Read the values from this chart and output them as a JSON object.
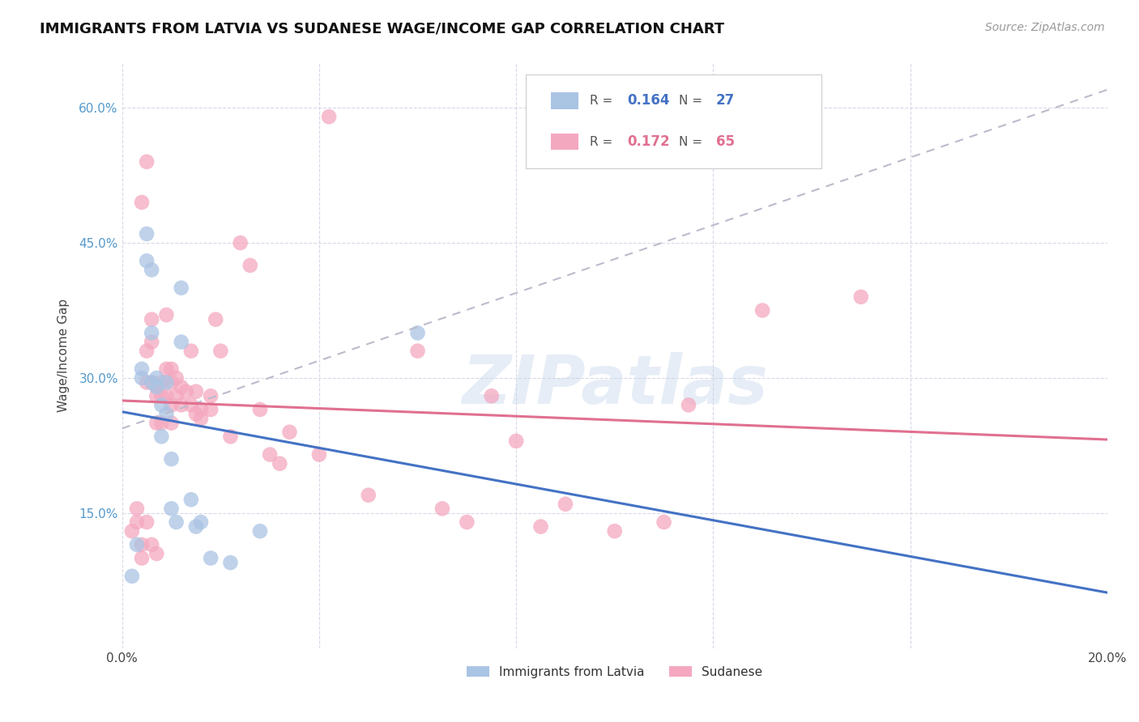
{
  "title": "IMMIGRANTS FROM LATVIA VS SUDANESE WAGE/INCOME GAP CORRELATION CHART",
  "source": "Source: ZipAtlas.com",
  "ylabel": "Wage/Income Gap",
  "xlim": [
    0.0,
    0.2
  ],
  "ylim": [
    0.0,
    0.65
  ],
  "x_ticks": [
    0.0,
    0.04,
    0.08,
    0.12,
    0.16,
    0.2
  ],
  "x_tick_labels": [
    "0.0%",
    "",
    "",
    "",
    "",
    "20.0%"
  ],
  "y_ticks": [
    0.0,
    0.15,
    0.3,
    0.45,
    0.6
  ],
  "y_tick_labels": [
    "",
    "15.0%",
    "30.0%",
    "45.0%",
    "60.0%"
  ],
  "background_color": "#ffffff",
  "grid_color": "#d8d8e8",
  "watermark": "ZIPatlas",
  "blue_color": "#aac4e4",
  "pink_color": "#f4a8c0",
  "line_blue": "#4472c4",
  "line_pink": "#e07090",
  "line_dashed_color": "#bbbbcc",
  "latvia_x": [
    0.002,
    0.003,
    0.004,
    0.004,
    0.005,
    0.005,
    0.006,
    0.006,
    0.006,
    0.007,
    0.007,
    0.008,
    0.008,
    0.009,
    0.009,
    0.01,
    0.01,
    0.011,
    0.012,
    0.012,
    0.014,
    0.015,
    0.016,
    0.018,
    0.022,
    0.028,
    0.06
  ],
  "latvia_y": [
    0.08,
    0.115,
    0.31,
    0.3,
    0.46,
    0.43,
    0.42,
    0.35,
    0.295,
    0.3,
    0.29,
    0.27,
    0.235,
    0.295,
    0.26,
    0.21,
    0.155,
    0.14,
    0.4,
    0.34,
    0.165,
    0.135,
    0.14,
    0.1,
    0.095,
    0.13,
    0.35
  ],
  "sudanese_x": [
    0.002,
    0.003,
    0.003,
    0.004,
    0.004,
    0.004,
    0.005,
    0.005,
    0.005,
    0.005,
    0.006,
    0.006,
    0.006,
    0.006,
    0.007,
    0.007,
    0.007,
    0.007,
    0.008,
    0.008,
    0.008,
    0.009,
    0.009,
    0.009,
    0.01,
    0.01,
    0.01,
    0.01,
    0.011,
    0.011,
    0.012,
    0.012,
    0.013,
    0.014,
    0.014,
    0.015,
    0.015,
    0.016,
    0.016,
    0.018,
    0.018,
    0.019,
    0.02,
    0.022,
    0.024,
    0.026,
    0.028,
    0.03,
    0.032,
    0.034,
    0.04,
    0.042,
    0.05,
    0.06,
    0.065,
    0.07,
    0.075,
    0.08,
    0.085,
    0.09,
    0.1,
    0.11,
    0.115,
    0.13,
    0.15
  ],
  "sudanese_y": [
    0.13,
    0.155,
    0.14,
    0.495,
    0.115,
    0.1,
    0.54,
    0.33,
    0.295,
    0.14,
    0.365,
    0.34,
    0.295,
    0.115,
    0.29,
    0.28,
    0.25,
    0.105,
    0.295,
    0.28,
    0.25,
    0.37,
    0.31,
    0.28,
    0.31,
    0.295,
    0.27,
    0.25,
    0.3,
    0.28,
    0.29,
    0.27,
    0.285,
    0.33,
    0.27,
    0.285,
    0.26,
    0.265,
    0.255,
    0.28,
    0.265,
    0.365,
    0.33,
    0.235,
    0.45,
    0.425,
    0.265,
    0.215,
    0.205,
    0.24,
    0.215,
    0.59,
    0.17,
    0.33,
    0.155,
    0.14,
    0.28,
    0.23,
    0.135,
    0.16,
    0.13,
    0.14,
    0.27,
    0.375,
    0.39
  ],
  "r1": "0.164",
  "n1": "27",
  "r2": "0.172",
  "n2": "65"
}
